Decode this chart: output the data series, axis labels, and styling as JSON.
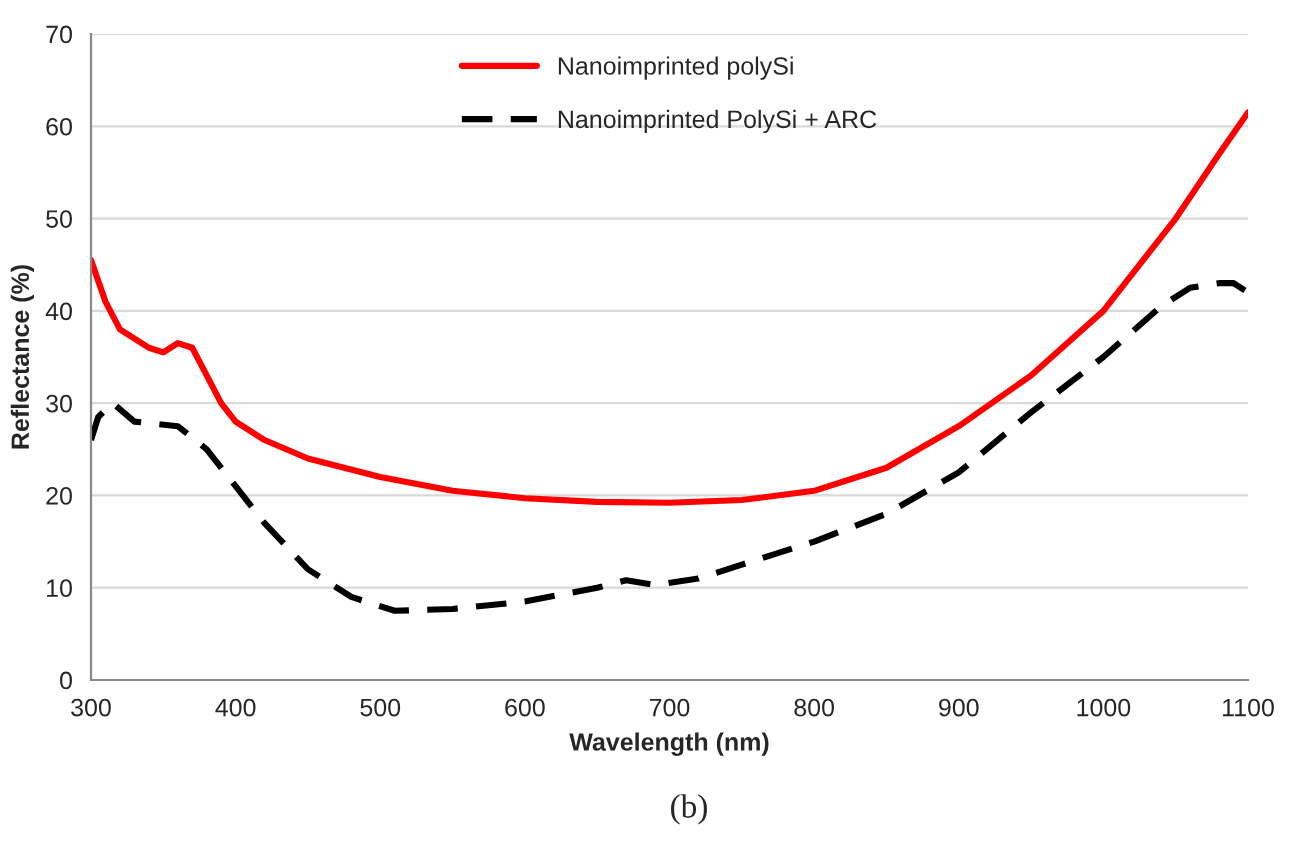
{
  "chart_data": {
    "type": "line",
    "xlabel": "Wavelength (nm)",
    "ylabel": "Reflectance (%)",
    "xlim": [
      300,
      1100
    ],
    "xticks": [
      300,
      400,
      500,
      600,
      700,
      800,
      900,
      1000,
      1100
    ],
    "ylim": [
      0,
      70
    ],
    "yticks": [
      0,
      10,
      20,
      30,
      40,
      50,
      60,
      70
    ],
    "grid": "y",
    "legend": "top",
    "annotations": [
      "(b)"
    ],
    "series": [
      {
        "name": "Nanoimprinted polySi",
        "color": "#ff0000",
        "line_style": "solid",
        "x": [
          300,
          310,
          320,
          340,
          350,
          360,
          370,
          380,
          390,
          400,
          420,
          450,
          500,
          550,
          600,
          650,
          700,
          750,
          800,
          850,
          900,
          950,
          1000,
          1050,
          1080,
          1100
        ],
        "values": [
          45.5,
          41,
          38,
          36,
          35.5,
          36.5,
          36,
          33,
          30,
          28,
          26,
          24,
          22,
          20.5,
          19.7,
          19.3,
          19.2,
          19.5,
          20.5,
          23,
          27.5,
          33,
          40,
          50,
          57,
          61.5
        ]
      },
      {
        "name": "Nanoimprinted PolySi + ARC",
        "color": "#000000",
        "line_style": "dashed",
        "x": [
          300,
          305,
          315,
          330,
          360,
          380,
          400,
          420,
          450,
          480,
          510,
          550,
          600,
          650,
          670,
          690,
          720,
          750,
          800,
          850,
          900,
          950,
          1000,
          1040,
          1060,
          1080,
          1090,
          1100
        ],
        "values": [
          26,
          28.5,
          30,
          28,
          27.5,
          25,
          21,
          17,
          12,
          9,
          7.5,
          7.7,
          8.5,
          10,
          10.8,
          10.3,
          11,
          12.5,
          15,
          18,
          22.5,
          29,
          35,
          40.5,
          42.5,
          43,
          43,
          42
        ]
      }
    ]
  }
}
